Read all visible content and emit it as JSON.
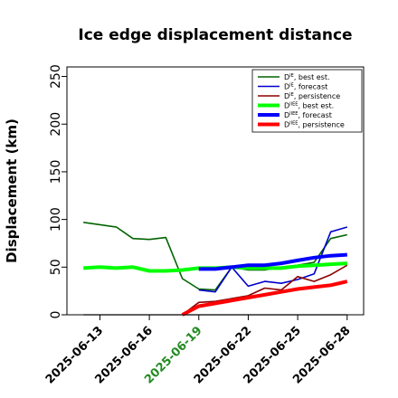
{
  "chart_data": {
    "type": "line",
    "title": "Ice edge displacement distance",
    "ylabel": "Displacement (km)",
    "xlabel": "",
    "ylim": [
      0,
      260
    ],
    "yticks": [
      0,
      50,
      100,
      150,
      200,
      250
    ],
    "xlim": [
      "2025-06-11",
      "2025-06-29"
    ],
    "xticks": [
      "2025-06-13",
      "2025-06-16",
      "2025-06-19",
      "2025-06-22",
      "2025-06-25",
      "2025-06-28"
    ],
    "highlighted_xtick": "2025-06-19",
    "highlight_color": "#228b22",
    "grid": false,
    "legend_position": "top-right",
    "zero_line_color": "#808080",
    "series": [
      {
        "name": "D^IE, best est.",
        "sup": "IE",
        "suffix": "best est.",
        "color": "#006400",
        "width": "thin",
        "points": [
          [
            "2025-06-12",
            97
          ],
          [
            "2025-06-14",
            92
          ],
          [
            "2025-06-15",
            80
          ],
          [
            "2025-06-16",
            79
          ],
          [
            "2025-06-17",
            81
          ],
          [
            "2025-06-18",
            38
          ],
          [
            "2025-06-19",
            27
          ],
          [
            "2025-06-20",
            26
          ],
          [
            "2025-06-21",
            50
          ],
          [
            "2025-06-22",
            47
          ],
          [
            "2025-06-23",
            47
          ],
          [
            "2025-06-24",
            50
          ],
          [
            "2025-06-25",
            52
          ],
          [
            "2025-06-26",
            55
          ],
          [
            "2025-06-27",
            80
          ],
          [
            "2025-06-28",
            84
          ]
        ]
      },
      {
        "name": "D^IE, forecast",
        "sup": "IE",
        "suffix": "forecast",
        "color": "#0000cd",
        "width": "thin",
        "points": [
          [
            "2025-06-19",
            26
          ],
          [
            "2025-06-20",
            24
          ],
          [
            "2025-06-21",
            50
          ],
          [
            "2025-06-22",
            30
          ],
          [
            "2025-06-23",
            35
          ],
          [
            "2025-06-24",
            33
          ],
          [
            "2025-06-25",
            37
          ],
          [
            "2025-06-26",
            43
          ],
          [
            "2025-06-27",
            87
          ],
          [
            "2025-06-28",
            92
          ]
        ]
      },
      {
        "name": "D^IE, persistence",
        "sup": "IE",
        "suffix": "persistence",
        "color": "#8b0000",
        "width": "thin",
        "points": [
          [
            "2025-06-18",
            0
          ],
          [
            "2025-06-19",
            13
          ],
          [
            "2025-06-20",
            14
          ],
          [
            "2025-06-21",
            17
          ],
          [
            "2025-06-22",
            20
          ],
          [
            "2025-06-23",
            28
          ],
          [
            "2025-06-24",
            26
          ],
          [
            "2025-06-25",
            40
          ],
          [
            "2025-06-26",
            35
          ],
          [
            "2025-06-27",
            42
          ],
          [
            "2025-06-28",
            52
          ]
        ]
      },
      {
        "name": "D^IIEE, best est.",
        "sup": "IIEE",
        "suffix": "best est.",
        "color": "#00ff00",
        "width": "thick",
        "points": [
          [
            "2025-06-12",
            49
          ],
          [
            "2025-06-13",
            50
          ],
          [
            "2025-06-14",
            49
          ],
          [
            "2025-06-15",
            50
          ],
          [
            "2025-06-16",
            46
          ],
          [
            "2025-06-17",
            46
          ],
          [
            "2025-06-18",
            47
          ],
          [
            "2025-06-19",
            49
          ],
          [
            "2025-06-20",
            49
          ],
          [
            "2025-06-21",
            50
          ],
          [
            "2025-06-22",
            49
          ],
          [
            "2025-06-23",
            49
          ],
          [
            "2025-06-24",
            49
          ],
          [
            "2025-06-25",
            51
          ],
          [
            "2025-06-26",
            52
          ],
          [
            "2025-06-27",
            53
          ],
          [
            "2025-06-28",
            54
          ]
        ]
      },
      {
        "name": "D^IIEE, forecast",
        "sup": "IIEE",
        "suffix": "forecast",
        "color": "#0000ff",
        "width": "thick",
        "points": [
          [
            "2025-06-19",
            48
          ],
          [
            "2025-06-20",
            48
          ],
          [
            "2025-06-21",
            50
          ],
          [
            "2025-06-22",
            52
          ],
          [
            "2025-06-23",
            52
          ],
          [
            "2025-06-24",
            54
          ],
          [
            "2025-06-25",
            57
          ],
          [
            "2025-06-26",
            60
          ],
          [
            "2025-06-27",
            62
          ],
          [
            "2025-06-28",
            63
          ]
        ]
      },
      {
        "name": "D^IIEE, persistence",
        "sup": "IIEE",
        "suffix": "persistence",
        "color": "#ff0000",
        "width": "thick",
        "points": [
          [
            "2025-06-18",
            0
          ],
          [
            "2025-06-19",
            9
          ],
          [
            "2025-06-20",
            12
          ],
          [
            "2025-06-21",
            15
          ],
          [
            "2025-06-22",
            18
          ],
          [
            "2025-06-23",
            21
          ],
          [
            "2025-06-24",
            24
          ],
          [
            "2025-06-25",
            27
          ],
          [
            "2025-06-26",
            29
          ],
          [
            "2025-06-27",
            31
          ],
          [
            "2025-06-28",
            35
          ]
        ]
      }
    ]
  }
}
